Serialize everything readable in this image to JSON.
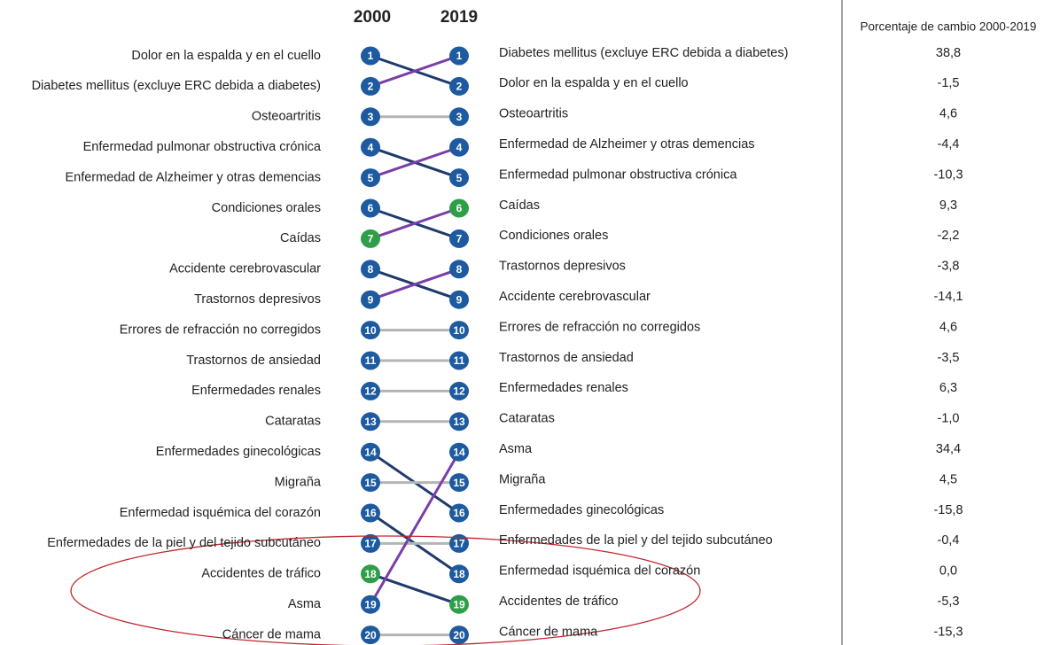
{
  "chart_data": {
    "type": "bump",
    "left_header": "2000",
    "right_header": "2019",
    "change_header": "Porcentaje de cambio 2000-2019",
    "ranks": [
      "1",
      "2",
      "3",
      "4",
      "5",
      "6",
      "7",
      "8",
      "9",
      "10",
      "11",
      "12",
      "13",
      "14",
      "15",
      "16",
      "17",
      "18",
      "19",
      "20"
    ],
    "left": [
      "Dolor en la espalda y en el cuello",
      "Diabetes mellitus (excluye ERC debida a diabetes)",
      "Osteoartritis",
      "Enfermedad pulmonar obstructiva crónica",
      "Enfermedad de Alzheimer y otras demencias",
      "Condiciones orales",
      "Caídas",
      "Accidente cerebrovascular",
      "Trastornos depresivos",
      "Errores de refracción no corregidos",
      "Trastornos de ansiedad",
      "Enfermedades renales",
      "Cataratas",
      "Enfermedades ginecológicas",
      "Migraña",
      "Enfermedad isquémica del corazón",
      "Enfermedades de la piel y del tejido subcutáneo",
      "Accidentes de tráfico",
      "Asma",
      "Cáncer de mama"
    ],
    "right": [
      "Diabetes mellitus (excluye ERC debida a diabetes)",
      "Dolor en la espalda y en el cuello",
      "Osteoartritis",
      "Enfermedad de Alzheimer y otras demencias",
      "Enfermedad pulmonar obstructiva crónica",
      "Caídas",
      "Condiciones orales",
      "Trastornos depresivos",
      "Accidente cerebrovascular",
      "Errores de refracción no corregidos",
      "Trastornos de ansiedad",
      "Enfermedades renales",
      "Cataratas",
      "Asma",
      "Migraña",
      "Enfermedades ginecológicas",
      "Enfermedades de la piel y del tejido subcutáneo",
      "Enfermedad isquémica del corazón",
      "Accidentes de tráfico",
      "Cáncer de mama"
    ],
    "values": [
      38.8,
      -1.5,
      4.6,
      -4.4,
      -10.3,
      9.3,
      -2.2,
      -3.8,
      -14.1,
      4.6,
      -3.5,
      6.3,
      -1.0,
      34.4,
      4.5,
      -15.8,
      -0.4,
      0.0,
      -5.3,
      -15.3
    ],
    "value_labels": [
      "38,8",
      "-1,5",
      "4,6",
      "-4,4",
      "-10,3",
      "9,3",
      "-2,2",
      "-3,8",
      "-14,1",
      "4,6",
      "-3,5",
      "6,3",
      "-1,0",
      "34,4",
      "4,5",
      "-15,8",
      "-0,4",
      "0,0",
      "-5,3",
      "-15,3"
    ],
    "highlight": [
      "Caídas",
      "Accidentes de tráfico"
    ],
    "colors": {
      "node": "#1d5aa0",
      "highlight": "#2f9e48",
      "up": "#7a3ea6",
      "down": "#1f3a6b",
      "same": "#b4b4b4"
    }
  }
}
